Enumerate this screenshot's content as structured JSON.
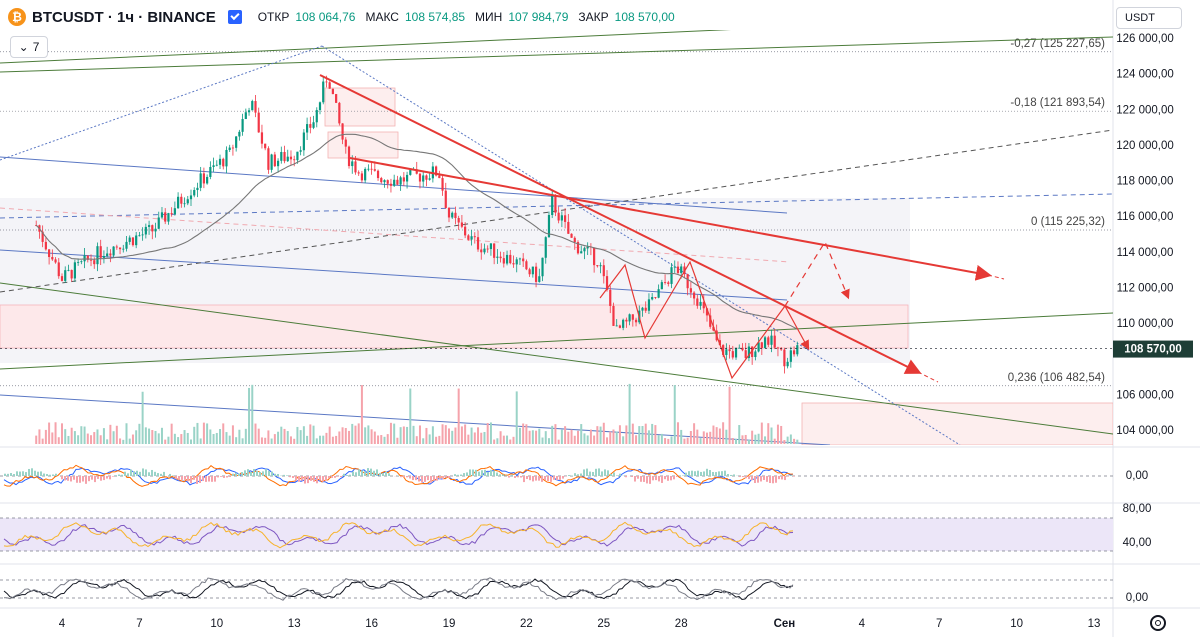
{
  "header": {
    "symbol": "BTCUSDT · 1ч · BINANCE",
    "open_label": "ОТКР",
    "open_value": "108 064,76",
    "high_label": "МАКС",
    "high_value": "108 574,85",
    "low_label": "МИН",
    "low_value": "107 984,79",
    "close_label": "ЗАКР",
    "close_value": "108 570,00"
  },
  "indicators_count": "7",
  "currency": "USDT",
  "colors": {
    "up": "#089981",
    "down": "#f23645",
    "accent": "#2962ff",
    "drawing_red": "#e53935",
    "trend_green": "#4c7c3a",
    "trend_blue": "#5b78c4"
  },
  "chart_data": {
    "type": "candlestick",
    "title": "BTCUSDT · 1ч · BINANCE",
    "y_min": 103000,
    "y_max": 126500,
    "y_ticks": [
      {
        "value": 126000,
        "label": "126 000,00"
      },
      {
        "value": 124000,
        "label": "124 000,00"
      },
      {
        "value": 122000,
        "label": "122 000,00"
      },
      {
        "value": 120000,
        "label": "120 000,00"
      },
      {
        "value": 118000,
        "label": "118 000,00"
      },
      {
        "value": 116000,
        "label": "116 000,00"
      },
      {
        "value": 114000,
        "label": "114 000,00"
      },
      {
        "value": 112000,
        "label": "112 000,00"
      },
      {
        "value": 110000,
        "label": "110 000,00"
      },
      {
        "value": 106000,
        "label": "106 000,00"
      },
      {
        "value": 104000,
        "label": "104 000,00"
      }
    ],
    "price_tag": {
      "value": 108570,
      "label": "108 570,00"
    },
    "fib_levels": [
      {
        "value": 125227.65,
        "label": "-0,27 (125 227,65)"
      },
      {
        "value": 121893.54,
        "label": "-0,18 (121 893,54)"
      },
      {
        "value": 115225.32,
        "label": "0 (115 225,32)"
      },
      {
        "value": 106482.54,
        "label": "0,236 (106 482,54)"
      }
    ],
    "x_ticks": [
      {
        "day": 4,
        "label": "4"
      },
      {
        "day": 7,
        "label": "7"
      },
      {
        "day": 10,
        "label": "10"
      },
      {
        "day": 13,
        "label": "13"
      },
      {
        "day": 16,
        "label": "16"
      },
      {
        "day": 19,
        "label": "19"
      },
      {
        "day": 22,
        "label": "22"
      },
      {
        "day": 25,
        "label": "25"
      },
      {
        "day": 28,
        "label": "28"
      },
      {
        "day": 32,
        "label": "Сен"
      },
      {
        "day": 35,
        "label": "4"
      },
      {
        "day": 38,
        "label": "7"
      },
      {
        "day": 41,
        "label": "10"
      },
      {
        "day": 44,
        "label": "13"
      }
    ],
    "key_points": [
      {
        "day": 3.0,
        "price": 115500
      },
      {
        "day": 4.0,
        "price": 112500
      },
      {
        "day": 5.5,
        "price": 114000
      },
      {
        "day": 7.5,
        "price": 115200
      },
      {
        "day": 9.0,
        "price": 117500
      },
      {
        "day": 10.5,
        "price": 119500
      },
      {
        "day": 11.3,
        "price": 122500
      },
      {
        "day": 12.0,
        "price": 119000
      },
      {
        "day": 13.0,
        "price": 119500
      },
      {
        "day": 13.8,
        "price": 121500
      },
      {
        "day": 14.3,
        "price": 124000
      },
      {
        "day": 15.0,
        "price": 119500
      },
      {
        "day": 15.5,
        "price": 118500
      },
      {
        "day": 17.0,
        "price": 118000
      },
      {
        "day": 18.6,
        "price": 118500
      },
      {
        "day": 19.0,
        "price": 116000
      },
      {
        "day": 20.0,
        "price": 114500
      },
      {
        "day": 21.5,
        "price": 113500
      },
      {
        "day": 22.5,
        "price": 112500
      },
      {
        "day": 23.0,
        "price": 116800
      },
      {
        "day": 23.8,
        "price": 114500
      },
      {
        "day": 24.8,
        "price": 113500
      },
      {
        "day": 25.5,
        "price": 109500
      },
      {
        "day": 26.8,
        "price": 111000
      },
      {
        "day": 27.8,
        "price": 113200
      },
      {
        "day": 28.6,
        "price": 111500
      },
      {
        "day": 29.5,
        "price": 108500
      },
      {
        "day": 30.5,
        "price": 108200
      },
      {
        "day": 31.3,
        "price": 109200
      },
      {
        "day": 32.0,
        "price": 108000
      },
      {
        "day": 32.5,
        "price": 108570
      }
    ],
    "oscillators": [
      {
        "name": "MACD",
        "ticks": [
          {
            "value": 0,
            "label": "0,00"
          }
        ]
      },
      {
        "name": "RSI",
        "ticks": [
          {
            "value": 80,
            "label": "80,00"
          },
          {
            "value": 40,
            "label": "40,00"
          }
        ]
      },
      {
        "name": "Stoch",
        "ticks": [
          {
            "value": 0,
            "label": "0,00"
          }
        ]
      }
    ]
  }
}
